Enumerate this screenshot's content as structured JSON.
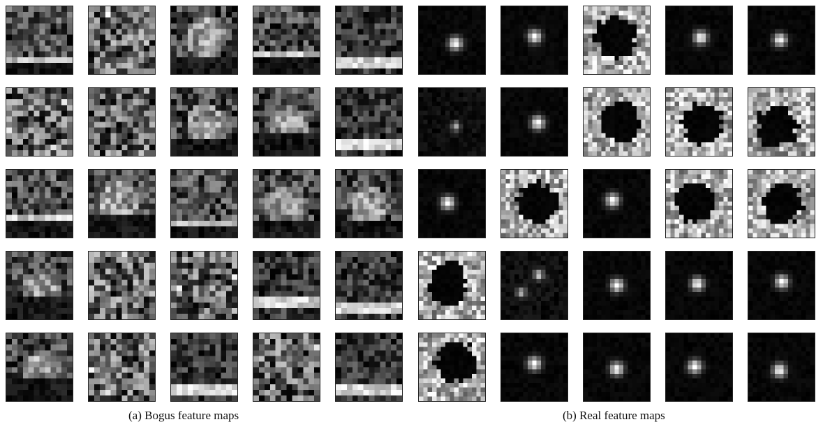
{
  "figure": {
    "panels": [
      {
        "id": "bogus",
        "caption": "(a) Bogus feature maps",
        "rows": 5,
        "cols": 5,
        "map_kinds": [
          [
            "noise-band",
            "noise",
            "bright-band",
            "noise-band",
            "stripe"
          ],
          [
            "noise",
            "noise",
            "bright-band",
            "bright-band",
            "stripe"
          ],
          [
            "noise-band",
            "bright-band",
            "noise-band",
            "bright-band",
            "bright-band"
          ],
          [
            "bright-band",
            "noise",
            "noise",
            "stripe",
            "stripe"
          ],
          [
            "bright-band",
            "noise",
            "stripe",
            "noise",
            "stripe"
          ]
        ]
      },
      {
        "id": "real",
        "caption": "(b) Real feature maps",
        "rows": 5,
        "cols": 5,
        "map_kinds": [
          [
            "spot",
            "spot",
            "ring",
            "spot",
            "spot"
          ],
          [
            "faint-spot",
            "spot",
            "ring",
            "ring",
            "ring"
          ],
          [
            "spot",
            "ring",
            "spot",
            "ring",
            "ring"
          ],
          [
            "ring",
            "double-spot",
            "spot",
            "spot",
            "spot"
          ],
          [
            "ring",
            "spot",
            "spot",
            "spot",
            "spot"
          ]
        ]
      }
    ]
  }
}
